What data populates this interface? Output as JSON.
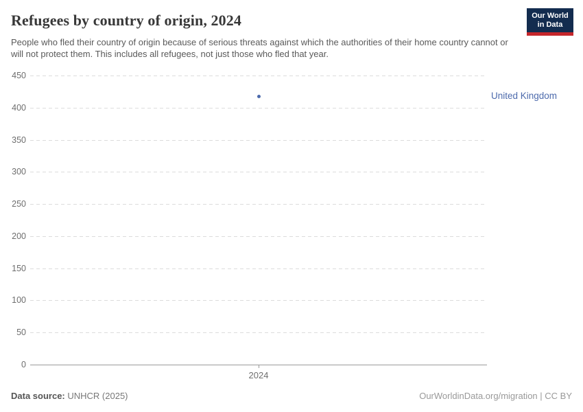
{
  "header": {
    "title": "Refugees by country of origin, 2024",
    "subtitle": "People who fled their country of origin because of serious threats against which the authorities of their home country cannot or will not protect them. This includes all refugees, not just those who fled that year."
  },
  "logo": {
    "line1": "Our World",
    "line2": "in Data",
    "bg_color": "#132c4f",
    "accent_color": "#c5262b"
  },
  "chart_data": {
    "type": "scatter",
    "title": "Refugees by country of origin, 2024",
    "x": [
      2024
    ],
    "xticks": [
      "2024"
    ],
    "series": [
      {
        "name": "United Kingdom",
        "values": [
          417
        ],
        "color": "#4c6aac"
      }
    ],
    "ylim": [
      0,
      450
    ],
    "yticks": [
      0,
      50,
      100,
      150,
      200,
      250,
      300,
      350,
      400,
      450
    ],
    "grid": "horizontal-dashed",
    "legend_position": "right-entity-label"
  },
  "footer": {
    "source_label": "Data source:",
    "source_value": "UNHCR (2025)",
    "right_text": "OurWorldinData.org/migration | CC BY"
  }
}
